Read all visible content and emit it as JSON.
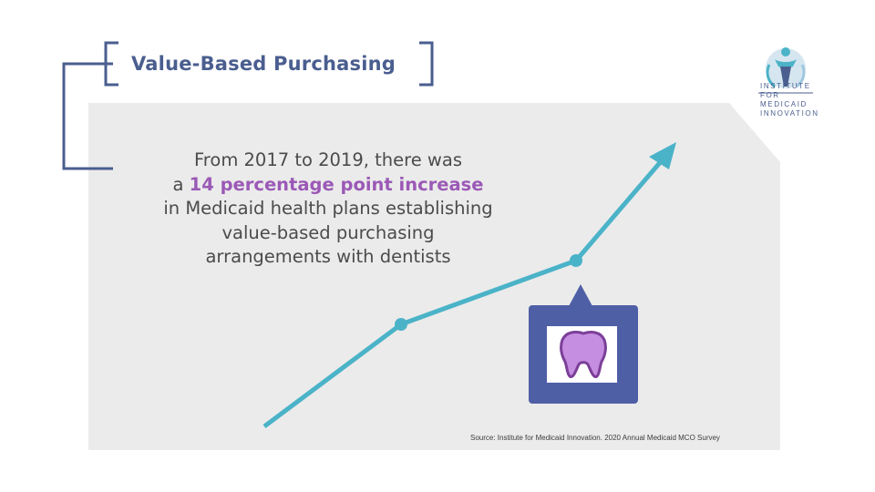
{
  "slide": {
    "title": "Value-Based Purchasing",
    "logo": {
      "icon": "figure-globe-logo",
      "lines": [
        "INSTITUTE FOR",
        "MEDICAID",
        "INNOVATION"
      ]
    },
    "headline": {
      "line1": "From 2017 to 2019, there was",
      "line2_prefix": "a ",
      "line2_highlight": "14 percentage point increase",
      "line3": "in Medicaid health plans establishing",
      "line4": "value-based purchasing",
      "line5": "arrangements with dentists"
    },
    "source": "Source: Institute for Medicaid Innovation. 2020 Annual Medicaid MCO Survey",
    "callout_icon": "tooth-icon",
    "colors": {
      "title": "#4a5e8f",
      "highlight": "#9b59b6",
      "arrow": "#4bb3c8",
      "panel": "#ebebeb",
      "callout": "#4f5fa6",
      "tooth": "#c68ee0"
    }
  }
}
